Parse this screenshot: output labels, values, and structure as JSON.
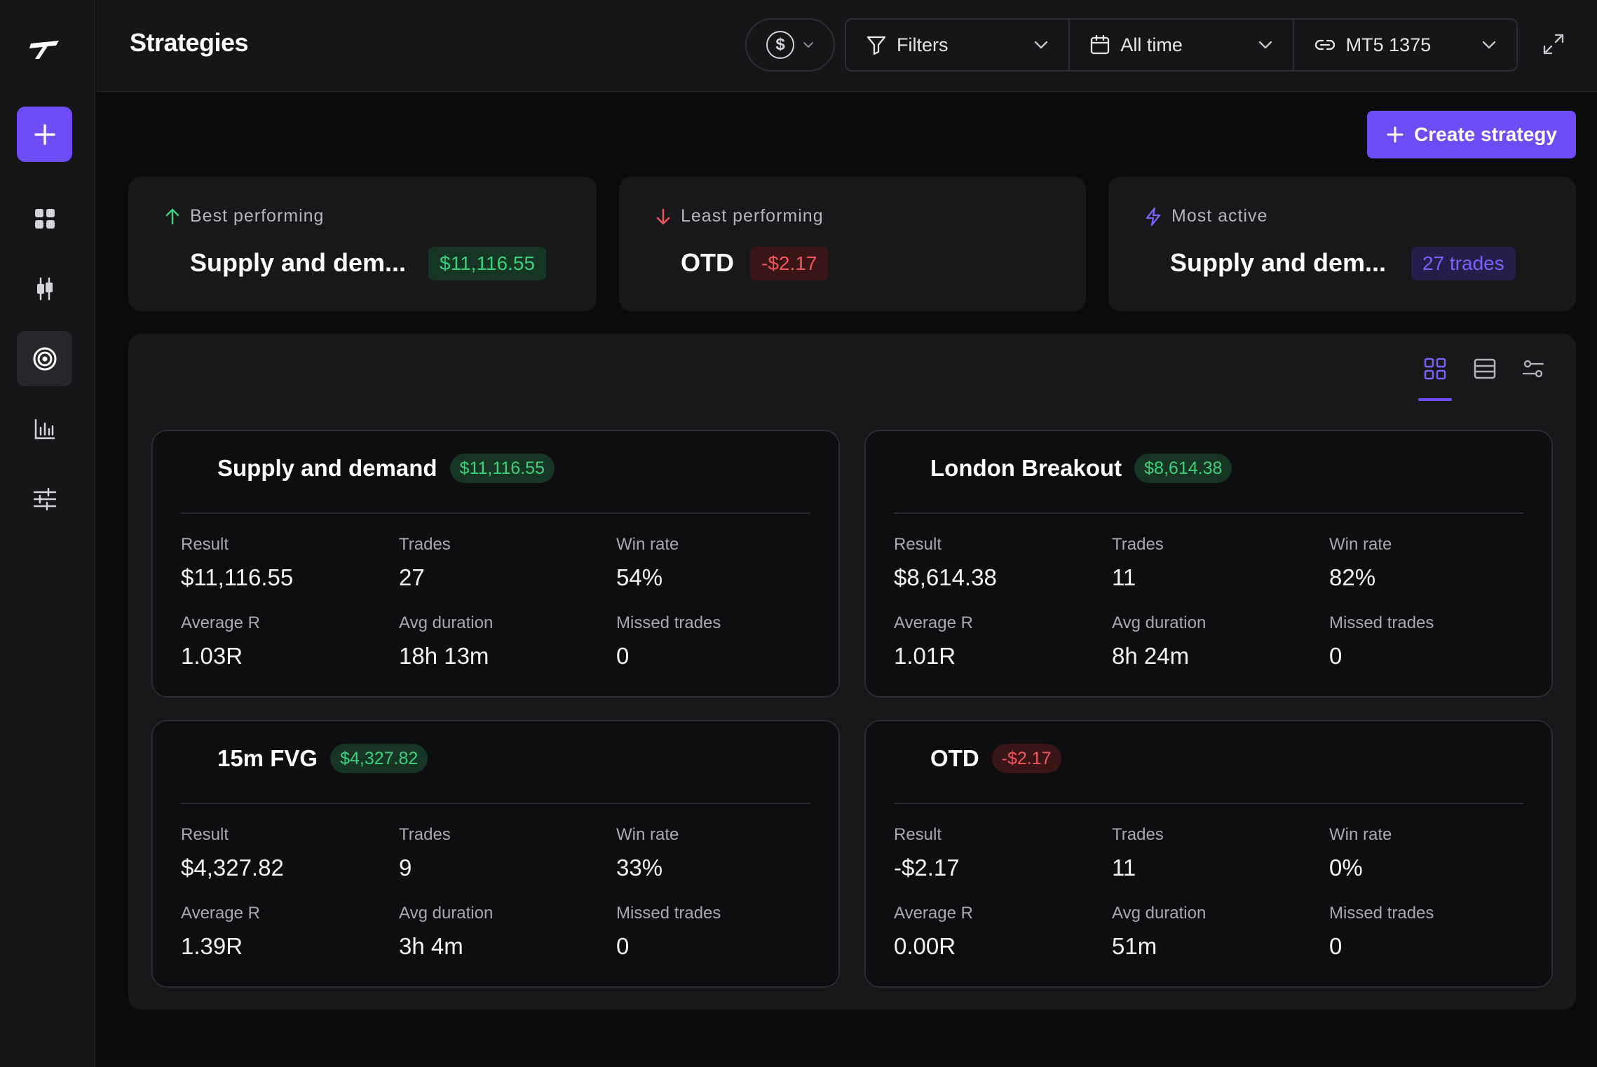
{
  "header": {
    "title": "Strategies",
    "currency_symbol": "$",
    "filters_label": "Filters",
    "time_label": "All time",
    "account_label": "MT5 1375"
  },
  "actions": {
    "create_label": "Create strategy"
  },
  "summary": {
    "best": {
      "label": "Best performing",
      "name": "Supply and dem...",
      "value": "$11,116.55"
    },
    "least": {
      "label": "Least performing",
      "name": "OTD",
      "value": "-$2.17"
    },
    "active": {
      "label": "Most active",
      "name": "Supply and dem...",
      "value": "27 trades"
    }
  },
  "strategies": [
    {
      "name": "Supply and demand",
      "badge": "$11,116.55",
      "positive": true,
      "result_label": "Result",
      "result": "$11,116.55",
      "trades_label": "Trades",
      "trades": "27",
      "winrate_label": "Win rate",
      "winrate": "54%",
      "avgr_label": "Average R",
      "avgr": "1.03R",
      "duration_label": "Avg duration",
      "duration": "18h 13m",
      "missed_label": "Missed trades",
      "missed": "0"
    },
    {
      "name": "London Breakout",
      "badge": "$8,614.38",
      "positive": true,
      "result_label": "Result",
      "result": "$8,614.38",
      "trades_label": "Trades",
      "trades": "11",
      "winrate_label": "Win rate",
      "winrate": "82%",
      "avgr_label": "Average R",
      "avgr": "1.01R",
      "duration_label": "Avg duration",
      "duration": "8h 24m",
      "missed_label": "Missed trades",
      "missed": "0"
    },
    {
      "name": "15m FVG",
      "badge": "$4,327.82",
      "positive": true,
      "result_label": "Result",
      "result": "$4,327.82",
      "trades_label": "Trades",
      "trades": "9",
      "winrate_label": "Win rate",
      "winrate": "33%",
      "avgr_label": "Average R",
      "avgr": "1.39R",
      "duration_label": "Avg duration",
      "duration": "3h 4m",
      "missed_label": "Missed trades",
      "missed": "0"
    },
    {
      "name": "OTD",
      "badge": "-$2.17",
      "positive": false,
      "result_label": "Result",
      "result": "-$2.17",
      "trades_label": "Trades",
      "trades": "11",
      "winrate_label": "Win rate",
      "winrate": "0%",
      "avgr_label": "Average R",
      "avgr": "0.00R",
      "duration_label": "Avg duration",
      "duration": "51m",
      "missed_label": "Missed trades",
      "missed": "0"
    }
  ],
  "colors": {
    "accent": "#6d4cf5",
    "positive": "#3ecf7d",
    "negative": "#f0545c"
  },
  "icons": {
    "sidebar": [
      "logo-icon",
      "plus-icon",
      "dashboard-icon",
      "candlestick-icon",
      "target-icon",
      "bar-chart-icon",
      "sliders-icon"
    ],
    "views": [
      "grid-view-icon",
      "list-view-icon",
      "settings-view-icon"
    ]
  }
}
